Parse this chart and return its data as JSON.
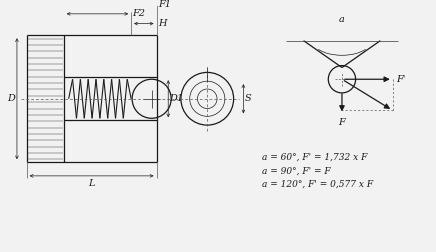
{
  "bg_color": "#f2f2f2",
  "line_color": "#1a1a1a",
  "text_color": "#1a1a1a",
  "formula_lines": [
    "a = 60°, F' = 1,732 x F",
    "a = 90°, F' = F",
    "a = 120°, F' = 0,577 x F"
  ],
  "labels": {
    "D": "D",
    "D1": "D1",
    "L": "L",
    "H": "H",
    "F1": "F1",
    "F2": "F2",
    "S": "S",
    "a": "a",
    "F": "F",
    "Fprime": "F'"
  }
}
